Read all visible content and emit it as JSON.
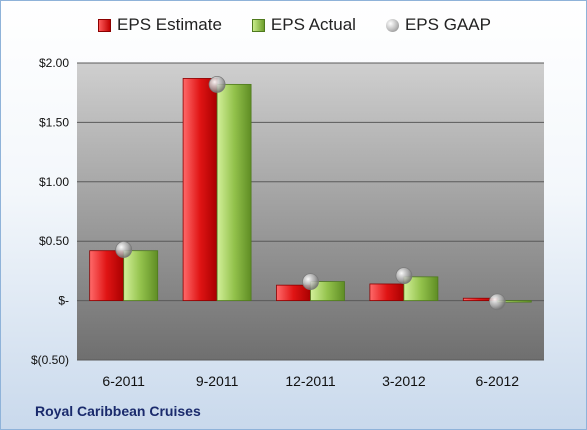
{
  "legend": {
    "estimate": "EPS Estimate",
    "actual": "EPS Actual",
    "gaap": "EPS GAAP"
  },
  "company": "Royal Caribbean Cruises",
  "colors": {
    "estimate": "#c00000",
    "actual": "#7fb33a",
    "gaap": "#a6a6a6"
  },
  "chart_data": {
    "type": "bar",
    "categories": [
      "6-2011",
      "9-2011",
      "12-2011",
      "3-2012",
      "6-2012"
    ],
    "series": [
      {
        "name": "EPS Estimate",
        "values": [
          0.42,
          1.87,
          0.13,
          0.14,
          0.02
        ]
      },
      {
        "name": "EPS Actual",
        "values": [
          0.42,
          1.82,
          0.16,
          0.2,
          -0.01
        ]
      },
      {
        "name": "EPS GAAP",
        "values": [
          0.43,
          1.82,
          0.16,
          0.21,
          -0.01
        ]
      }
    ],
    "ylim": [
      -0.5,
      2.0
    ],
    "ytick_values": [
      -0.5,
      0,
      0.5,
      1.0,
      1.5,
      2.0
    ],
    "ytick_labels": [
      "$(0.50)",
      "$-",
      "$0.50",
      "$1.00",
      "$1.50",
      "$2.00"
    ],
    "grid": true,
    "legend_position": "top"
  }
}
